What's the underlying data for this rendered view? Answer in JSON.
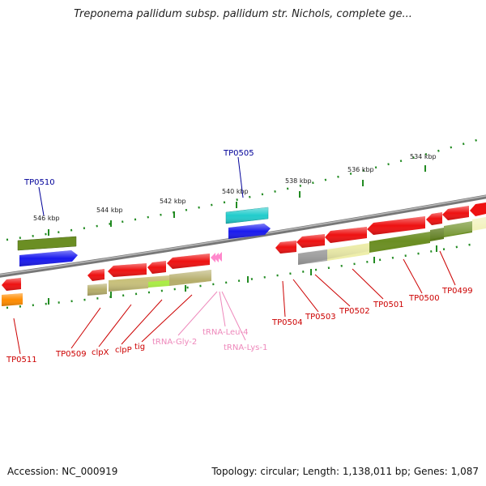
{
  "title": "Treponema pallidum subsp. pallidum str. Nichols, complete ge...",
  "footer": {
    "accession": "Accession: NC_000919",
    "summary": "Topology: circular; Length: 1,138,011 bp; Genes: 1,087"
  },
  "ruler": {
    "ticks": [
      "546 kbp",
      "544 kbp",
      "542 kbp",
      "540 kbp",
      "538 kbp",
      "536 kbp",
      "534 kbp"
    ]
  },
  "top_labels": [
    "TP0510",
    "TP0505"
  ],
  "bottom_labels": [
    "TP0511",
    "TP0509",
    "clpX",
    "clpP",
    "tig",
    "tRNA-Gly-2",
    "tRNA-Leu-4",
    "tRNA-Lys-1",
    "TP0504",
    "TP0503",
    "TP0502",
    "TP0501",
    "TP0500",
    "TP0499"
  ],
  "colors": {
    "gene_red": "#ee1111",
    "cds_olive": "#6b8e23",
    "cds_khaki": "#c8c87a",
    "cds_yellow": "#eeeeaa",
    "gene_blue": "#1a1aee",
    "gene_cyan": "#22cccc",
    "gene_orange": "#ff8c00",
    "gene_gray": "#aaaaaa",
    "trna_pink": "#ff88cc",
    "label_red": "#cc0000",
    "label_pink": "#ee88bb",
    "label_blue": "#000099",
    "backbone": "#777777"
  }
}
